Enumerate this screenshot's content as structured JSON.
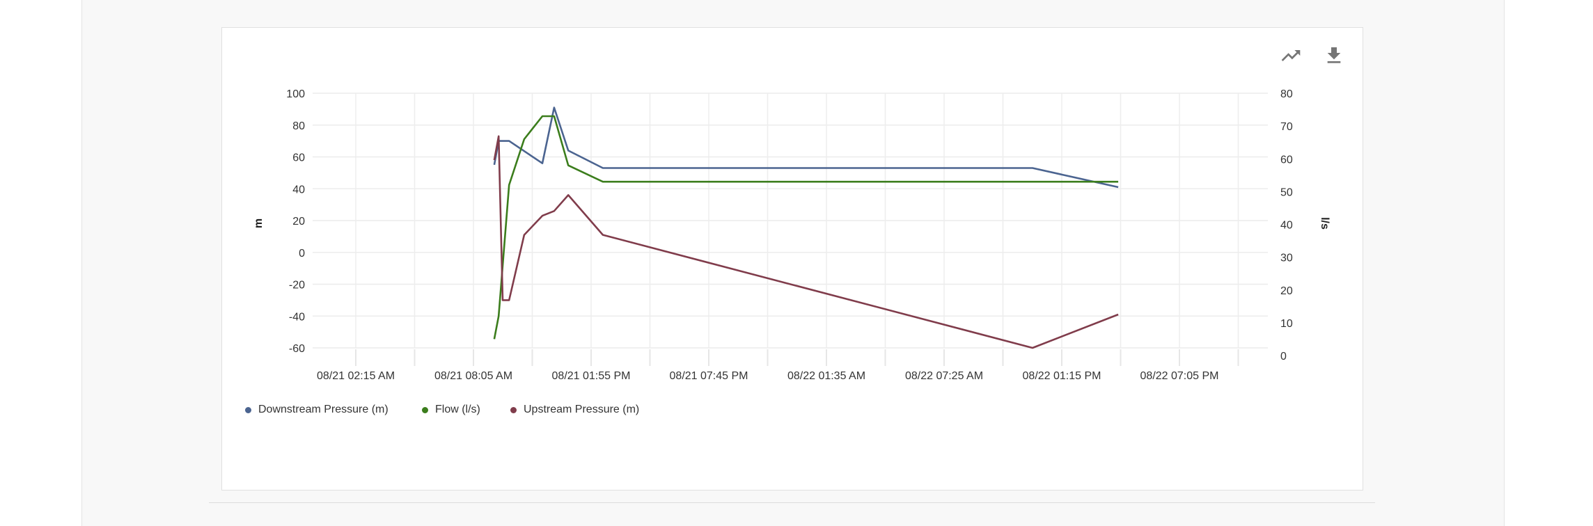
{
  "toolbar": {
    "trend_icon": "trending-up-icon",
    "download_icon": "download-icon"
  },
  "chart_data": {
    "type": "line",
    "x_tick_labels": [
      "08/21 02:15 AM",
      "08/21 08:05 AM",
      "08/21 01:55 PM",
      "08/21 07:45 PM",
      "08/22 01:35 AM",
      "08/22 07:25 AM",
      "08/22 01:15 PM",
      "08/22 07:05 PM"
    ],
    "y_left": {
      "label": "m",
      "ticks": [
        100,
        80,
        60,
        40,
        20,
        0,
        -20,
        -40,
        -60
      ],
      "range": [
        -60,
        100
      ]
    },
    "y_right": {
      "label": "l/s",
      "ticks": [
        80,
        70,
        60,
        50,
        40,
        30,
        20,
        10,
        0
      ],
      "range": [
        0,
        80
      ]
    },
    "grid": true,
    "legend_position": "bottom-left",
    "series": [
      {
        "name": "Downstream Pressure (m)",
        "axis": "left",
        "color": "#4b6490",
        "points": [
          [
            "08/21 09:07",
            55
          ],
          [
            "08/21 09:20",
            70
          ],
          [
            "08/21 09:51",
            70
          ],
          [
            "08/21 11:30",
            56
          ],
          [
            "08/21 12:05",
            91
          ],
          [
            "08/21 12:47",
            64
          ],
          [
            "08/21 14:30",
            53
          ],
          [
            "08/22 11:48",
            53
          ],
          [
            "08/22 16:03",
            41
          ]
        ]
      },
      {
        "name": "Flow (l/s)",
        "axis": "right",
        "color": "#3b7d1c",
        "points": [
          [
            "08/21 09:07",
            5
          ],
          [
            "08/21 09:20",
            12
          ],
          [
            "08/21 09:51",
            52
          ],
          [
            "08/21 10:36",
            66
          ],
          [
            "08/21 11:30",
            73
          ],
          [
            "08/21 12:05",
            73
          ],
          [
            "08/21 12:47",
            58
          ],
          [
            "08/21 14:30",
            53
          ],
          [
            "08/22 16:03",
            53
          ]
        ]
      },
      {
        "name": "Upstream Pressure (m)",
        "axis": "left",
        "color": "#803c4b",
        "points": [
          [
            "08/21 09:07",
            58
          ],
          [
            "08/21 09:20",
            73
          ],
          [
            "08/21 09:32",
            -30
          ],
          [
            "08/21 09:51",
            -30
          ],
          [
            "08/21 10:36",
            11
          ],
          [
            "08/21 11:30",
            23
          ],
          [
            "08/21 12:05",
            26
          ],
          [
            "08/21 12:47",
            36
          ],
          [
            "08/21 14:30",
            11
          ],
          [
            "08/22 11:48",
            -60
          ],
          [
            "08/22 16:03",
            -39
          ]
        ]
      }
    ]
  }
}
